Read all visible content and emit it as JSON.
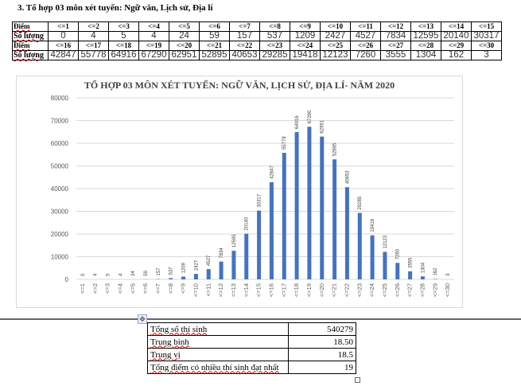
{
  "heading": "3. Tổ hợp 03 môn xét tuyển: Ngữ văn, Lịch sử, Địa lí",
  "score_table": {
    "row_label_score": "Điểm",
    "row_label_count": "Số lượng",
    "rows": [
      {
        "scores": [
          "<=1",
          "<=2",
          "<=3",
          "<=4",
          "<=5",
          "<=6",
          "<=7",
          "<=8",
          "<=9",
          "<=10",
          "<=11",
          "<=12",
          "<=13",
          "<=14",
          "<=15"
        ],
        "counts": [
          "0",
          "4",
          "5",
          "4",
          "24",
          "59",
          "157",
          "537",
          "1209",
          "2427",
          "4527",
          "7834",
          "12595",
          "20140",
          "30317"
        ]
      },
      {
        "scores": [
          "<=16",
          "<=17",
          "<=18",
          "<=19",
          "<=20",
          "<=21",
          "<=22",
          "<=23",
          "<=24",
          "<=25",
          "<=26",
          "<=27",
          "<=28",
          "<=29",
          "<=30"
        ],
        "counts": [
          "42847",
          "55778",
          "64916",
          "67290",
          "62951",
          "52895",
          "40653",
          "29285",
          "19418",
          "12123",
          "7260",
          "3555",
          "1304",
          "162",
          "3"
        ]
      }
    ]
  },
  "chart_data": {
    "type": "bar",
    "title": "TỔ HỢP 03 MÔN XÉT TUYỂN: NGỮ VĂN, LỊCH SỬ, ĐỊA LÍ- NĂM 2020",
    "categories": [
      "<=1",
      "<=2",
      "<=3",
      "<=4",
      "<=5",
      "<=6",
      "<=7",
      "<=8",
      "<=9",
      "<=10",
      "<=11",
      "<=12",
      "<=13",
      "<=14",
      "<=15",
      "<=16",
      "<=17",
      "<=18",
      "<=19",
      "<=20",
      "<=21",
      "<=22",
      "<=23",
      "<=24",
      "<=25",
      "<=26",
      "<=27",
      "<=28",
      "<=29",
      "<=30"
    ],
    "values": [
      0,
      4,
      5,
      4,
      24,
      59,
      157,
      537,
      1209,
      2427,
      4527,
      7834,
      12595,
      20140,
      30317,
      42847,
      55778,
      64916,
      67290,
      62951,
      52895,
      40653,
      29285,
      19418,
      12123,
      7260,
      3555,
      1304,
      162,
      3
    ],
    "ylim": [
      0,
      80000
    ],
    "yticks": [
      0,
      10000,
      20000,
      30000,
      40000,
      50000,
      60000,
      70000,
      80000
    ],
    "grid": true,
    "data_labels": true,
    "bar_color": "#4472c4"
  },
  "stats": [
    {
      "label": "Tổng số thí sinh",
      "value": "540279"
    },
    {
      "label": "Trung bình",
      "value": "18.50"
    },
    {
      "label": "Trung vị",
      "value": "18.5"
    },
    {
      "label": "Tổng điểm có nhiều thí sinh đạt nhất",
      "value": "19"
    }
  ]
}
